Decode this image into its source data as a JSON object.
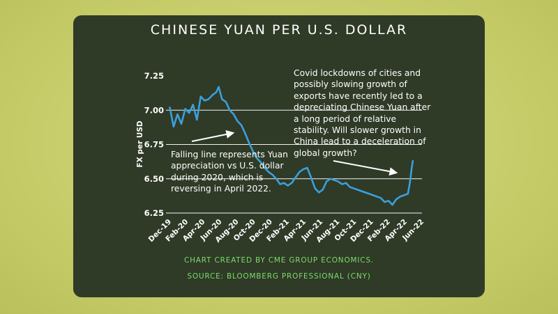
{
  "title": "CHINESE YUAN PER U.S. DOLLAR",
  "chart_data": {
    "type": "line",
    "title": "CHINESE YUAN PER U.S. DOLLAR",
    "ylabel": "FX per USD",
    "xlabel": "",
    "ylim": [
      6.25,
      7.25
    ],
    "yticks": [
      "7.25",
      "7.00",
      "6.75",
      "6.50",
      "6.25"
    ],
    "ytick_values": [
      7.25,
      7.0,
      6.75,
      6.5,
      6.25
    ],
    "xticks": [
      "Dec-19",
      "Feb-20",
      "Apr-20",
      "Jun-20",
      "Aug-20",
      "Oct-20",
      "Dec-20",
      "Feb-21",
      "Apr-21",
      "Jun-21",
      "Aug-21",
      "Oct-21",
      "Dec-21",
      "Feb-22",
      "Apr-22",
      "Jun-22"
    ],
    "grid": "horizontal",
    "line_color": "#3aa0dc",
    "series": [
      {
        "x": [
          "2019-12-02",
          "2019-12-16",
          "2019-12-30",
          "2020-01-13",
          "2020-01-27",
          "2020-02-10",
          "2020-02-24",
          "2020-03-09",
          "2020-03-23",
          "2020-04-06",
          "2020-04-20",
          "2020-05-04",
          "2020-05-18",
          "2020-05-27",
          "2020-06-08",
          "2020-06-22",
          "2020-07-06",
          "2020-07-20",
          "2020-08-03",
          "2020-08-17",
          "2020-08-31",
          "2020-09-14",
          "2020-09-28",
          "2020-10-12",
          "2020-10-26",
          "2020-11-09",
          "2020-11-23",
          "2020-12-07",
          "2020-12-21",
          "2021-01-04",
          "2021-01-18",
          "2021-02-01",
          "2021-02-15",
          "2021-03-01",
          "2021-03-15",
          "2021-03-29",
          "2021-04-12",
          "2021-04-26",
          "2021-05-10",
          "2021-05-24",
          "2021-06-07",
          "2021-06-21",
          "2021-07-05",
          "2021-07-19",
          "2021-08-02",
          "2021-08-16",
          "2021-08-30",
          "2021-09-13",
          "2021-09-27",
          "2021-10-11",
          "2021-10-25",
          "2021-11-08",
          "2021-11-22",
          "2021-12-06",
          "2021-12-20",
          "2022-01-03",
          "2022-01-17",
          "2022-01-31",
          "2022-02-14",
          "2022-02-28",
          "2022-03-14",
          "2022-03-28",
          "2022-04-11",
          "2022-04-18",
          "2022-04-25",
          "2022-04-29"
        ],
        "values": [
          7.02,
          6.88,
          6.97,
          6.9,
          7.01,
          6.98,
          7.04,
          6.93,
          7.1,
          7.07,
          7.08,
          7.11,
          7.13,
          7.17,
          7.08,
          7.06,
          7.0,
          6.97,
          6.92,
          6.89,
          6.83,
          6.76,
          6.7,
          6.65,
          6.62,
          6.58,
          6.55,
          6.53,
          6.5,
          6.46,
          6.47,
          6.45,
          6.47,
          6.51,
          6.55,
          6.57,
          6.58,
          6.51,
          6.43,
          6.4,
          6.42,
          6.48,
          6.5,
          6.49,
          6.48,
          6.46,
          6.47,
          6.44,
          6.43,
          6.42,
          6.41,
          6.4,
          6.39,
          6.38,
          6.37,
          6.36,
          6.33,
          6.34,
          6.31,
          6.35,
          6.37,
          6.38,
          6.39,
          6.47,
          6.58,
          6.63
        ]
      }
    ]
  },
  "annotations": {
    "left": "Falling line represents Yuan appreciation vs U.S. dollar during 2020, which is reversing in April 2022.",
    "right": "Covid lockdowns of cities and possibly slowing growth of exports have recently led to a depreciating Chinese Yuan after a long period of relative stability. Will slower growth in China lead to a deceleration of global growth?"
  },
  "credits": {
    "line1": "CHART CREATED BY CME GROUP ECONOMICS.",
    "line2": "SOURCE:  BLOOMBERG PROFESSIONAL (CNY)"
  },
  "colors": {
    "background": "#c5cc6a",
    "card": "#2f3a27",
    "line": "#3aa0dc",
    "credit_text": "#7cdc6a"
  }
}
